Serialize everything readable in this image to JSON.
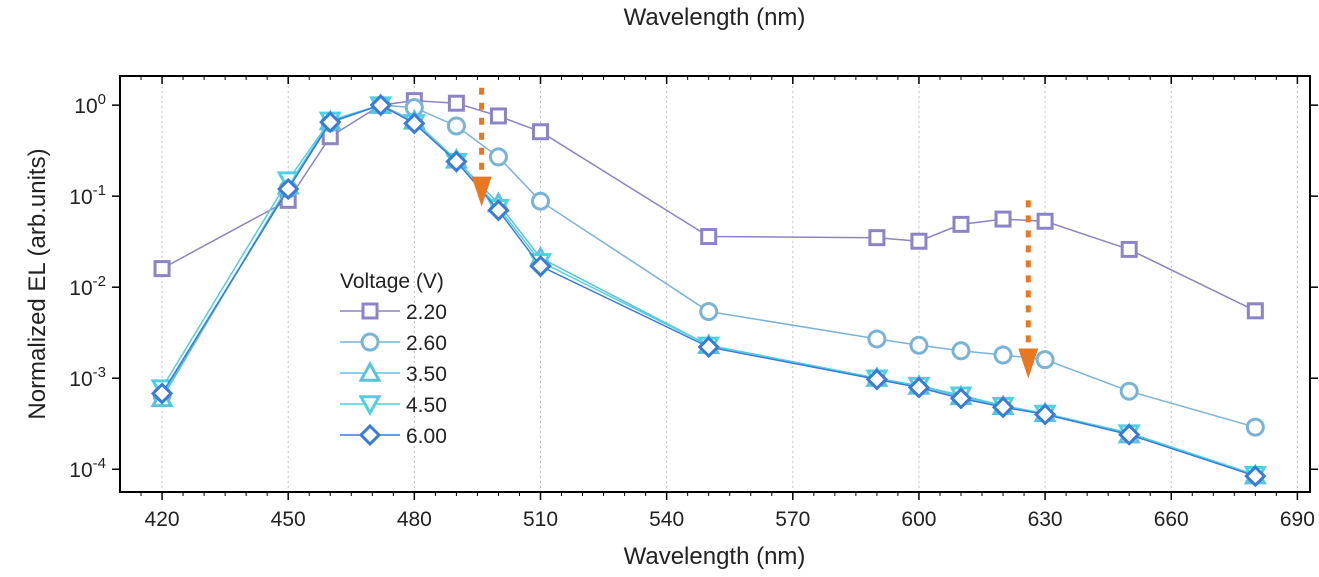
{
  "chart_data": {
    "type": "line",
    "top_title": "Wavelength (nm)",
    "xlabel": "Wavelength (nm)",
    "ylabel": "Normalized EL (arb.units)",
    "xlim": [
      410,
      693
    ],
    "ylim_log10": [
      -4.25,
      0.32
    ],
    "x_ticks": [
      420,
      450,
      480,
      510,
      540,
      570,
      600,
      630,
      660,
      690
    ],
    "y_ticks": [
      {
        "exp": 0,
        "base": "10",
        "sup": "0"
      },
      {
        "exp": -1,
        "base": "10",
        "sup": "-1"
      },
      {
        "exp": -2,
        "base": "10",
        "sup": "-2"
      },
      {
        "exp": -3,
        "base": "10",
        "sup": "-3"
      },
      {
        "exp": -4,
        "base": "10",
        "sup": "-4"
      }
    ],
    "grid": "vertical-dotted",
    "legend": {
      "title": "Voltage (V)",
      "position": "center-left"
    },
    "series": [
      {
        "name": "2.20",
        "marker": "square",
        "color": "#8B84C6",
        "x": [
          420,
          450,
          460,
          472,
          480,
          490,
          500,
          510,
          550,
          590,
          600,
          610,
          620,
          630,
          650,
          680
        ],
        "y": [
          0.016,
          0.09,
          0.45,
          1.0,
          1.12,
          1.05,
          0.76,
          0.51,
          0.036,
          0.035,
          0.032,
          0.049,
          0.056,
          0.053,
          0.026,
          0.0055
        ]
      },
      {
        "name": "2.60",
        "marker": "circle",
        "color": "#79B3D6",
        "x": [
          420,
          450,
          460,
          472,
          480,
          490,
          500,
          510,
          550,
          590,
          600,
          610,
          620,
          630,
          650,
          680
        ],
        "y": [
          0.00065,
          0.12,
          0.64,
          1.0,
          0.94,
          0.59,
          0.27,
          0.088,
          0.0054,
          0.0027,
          0.0023,
          0.002,
          0.0018,
          0.0016,
          0.00072,
          0.00029
        ]
      },
      {
        "name": "3.50",
        "marker": "triangle-up",
        "color": "#5BC1DC",
        "x": [
          420,
          450,
          460,
          472,
          480,
          490,
          500,
          510,
          550,
          590,
          600,
          610,
          620,
          630,
          650,
          680
        ],
        "y": [
          0.0006,
          0.13,
          0.66,
          1.0,
          0.67,
          0.25,
          0.083,
          0.021,
          0.0023,
          0.001,
          0.00082,
          0.00063,
          0.00049,
          0.00041,
          0.00024,
          8.5e-05
        ]
      },
      {
        "name": "4.50",
        "marker": "triangle-down",
        "color": "#4FD0E0",
        "x": [
          420,
          450,
          460,
          472,
          480,
          490,
          500,
          510,
          550,
          590,
          600,
          610,
          620,
          630,
          650,
          680
        ],
        "y": [
          0.00078,
          0.15,
          0.68,
          1.0,
          0.64,
          0.24,
          0.075,
          0.019,
          0.0023,
          0.001,
          0.00083,
          0.00065,
          0.0005,
          0.00041,
          0.00025,
          8.7e-05
        ]
      },
      {
        "name": "6.00",
        "marker": "diamond",
        "color": "#3A7BD5",
        "x": [
          420,
          450,
          460,
          472,
          480,
          490,
          500,
          510,
          550,
          590,
          600,
          610,
          620,
          630,
          650,
          680
        ],
        "y": [
          0.00068,
          0.12,
          0.65,
          1.0,
          0.63,
          0.24,
          0.07,
          0.017,
          0.0022,
          0.00097,
          0.00079,
          0.0006,
          0.00048,
          0.0004,
          0.00024,
          8.4e-05
        ]
      }
    ],
    "annotations": [
      {
        "type": "dotted-arrow-down",
        "x": 496,
        "y_from": 1.55,
        "y_to": 0.085,
        "color": "#E87722"
      },
      {
        "type": "dotted-arrow-down",
        "x": 626,
        "y_from": 0.09,
        "y_to": 0.0011,
        "color": "#E87722"
      }
    ]
  }
}
